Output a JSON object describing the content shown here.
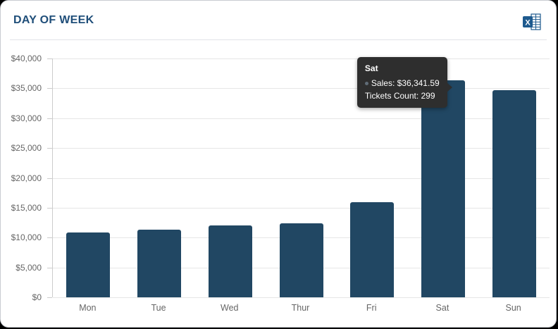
{
  "header": {
    "title": "DAY OF WEEK"
  },
  "icons": {
    "export": "excel-export-icon"
  },
  "colors": {
    "bar": "#214763",
    "title": "#1f4e79",
    "axis_label": "#666666",
    "gridline": "#e6e6e6",
    "axis_line": "#cccccc",
    "tooltip_bg": "#2e2e2e",
    "tooltip_text": "#ffffff",
    "card_bg": "#ffffff",
    "excel_blue": "#1e5a8e"
  },
  "chart_data": {
    "type": "bar",
    "title": "DAY OF WEEK",
    "categories": [
      "Mon",
      "Tue",
      "Wed",
      "Thur",
      "Fri",
      "Sat",
      "Sun"
    ],
    "series": [
      {
        "name": "Sales",
        "values": [
          10850,
          11350,
          12050,
          12400,
          15880,
          36341.59,
          34670
        ]
      }
    ],
    "xlabel": "",
    "ylabel": "",
    "ylim": [
      0,
      40000
    ],
    "ytick_step": 5000,
    "ytick_labels": [
      "$0",
      "$5,000",
      "$10,000",
      "$15,000",
      "$20,000",
      "$25,000",
      "$30,000",
      "$35,000",
      "$40,000"
    ],
    "grid": "horizontal",
    "legend": "none"
  },
  "tooltip": {
    "target_category": "Sat",
    "target_index": 5,
    "header": "Sat",
    "sales_line": "Sales: $36,341.59",
    "tickets_line": "Tickets Count: 299"
  }
}
